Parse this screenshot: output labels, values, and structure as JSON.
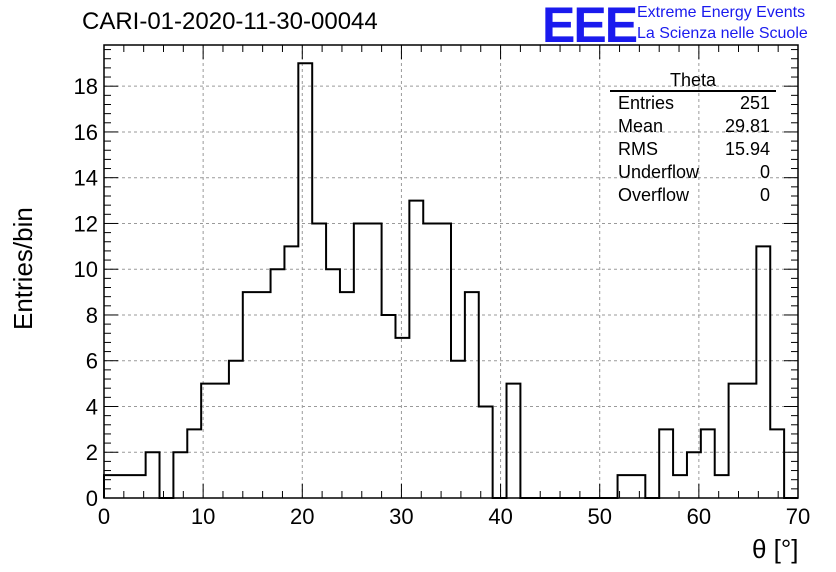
{
  "chart_data": {
    "type": "histogram",
    "title": "CARI-01-2020-11-30-00044",
    "xlabel": "θ [°]",
    "ylabel": "Entries/bin",
    "xlim": [
      0,
      70
    ],
    "ylim": [
      0,
      19.8
    ],
    "x_ticks": [
      0,
      10,
      20,
      30,
      40,
      50,
      60,
      70
    ],
    "y_ticks": [
      0,
      2,
      4,
      6,
      8,
      10,
      12,
      14,
      16,
      18
    ],
    "grid": true,
    "bin_edges": [
      0,
      1.4,
      2.8,
      4.2,
      5.6,
      7,
      8.4,
      9.8,
      11.2,
      12.6,
      14,
      15.4,
      16.8,
      18.2,
      19.6,
      21,
      22.4,
      23.8,
      25.2,
      26.6,
      28,
      29.4,
      30.8,
      32.2,
      33.6,
      35,
      36.4,
      37.8,
      39.2,
      40.6,
      42,
      43.4,
      44.8,
      46.2,
      47.6,
      49,
      50.4,
      51.8,
      53.2,
      54.6,
      56,
      57.4,
      58.8,
      60.2,
      61.6,
      63,
      64.4,
      65.8,
      67.2,
      68.6,
      70
    ],
    "counts": [
      1,
      1,
      1,
      2,
      0,
      2,
      3,
      5,
      5,
      6,
      9,
      9,
      10,
      11,
      19,
      12,
      10,
      9,
      12,
      12,
      8,
      7,
      13,
      12,
      12,
      6,
      9,
      4,
      0,
      5,
      0,
      0,
      0,
      0,
      0,
      0,
      0,
      1,
      1,
      0,
      3,
      1,
      2,
      3,
      1,
      5,
      5,
      11,
      3,
      0
    ],
    "stats": {
      "name": "Theta",
      "entries_label": "Entries",
      "entries": "251",
      "mean_label": "Mean",
      "mean": "29.81",
      "rms_label": "RMS",
      "rms": "15.94",
      "underflow_label": "Underflow",
      "underflow": "0",
      "overflow_label": "Overflow",
      "overflow": "0"
    }
  },
  "logo": {
    "text": "EEE",
    "line1": "Extreme Energy Events",
    "line2": "La Scienza nelle Scuole",
    "color": "#1a1aee"
  }
}
